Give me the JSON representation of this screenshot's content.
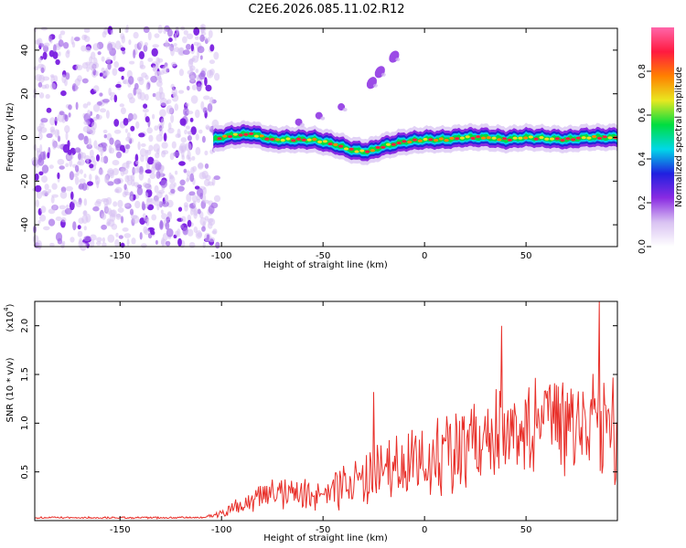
{
  "title": "C2E6.2026.085.11.02.R12",
  "chart_data": [
    {
      "type": "heatmap",
      "name": "spectrogram",
      "xlabel": "Height of straight line (km)",
      "ylabel": "Frequency (Hz)",
      "xlim": [
        -192,
        95
      ],
      "ylim": [
        -50,
        50
      ],
      "xticks": [
        -150,
        -100,
        -50,
        0,
        50
      ],
      "yticks": [
        -40,
        -20,
        0,
        20,
        40
      ],
      "noise_region_x": [
        -192,
        -102
      ],
      "ridge": {
        "x": [
          -104,
          -95,
          -85,
          -75,
          -65,
          -55,
          -45,
          -35,
          -28,
          -20,
          -10,
          0,
          10,
          20,
          30,
          40,
          50,
          60,
          70,
          80,
          95
        ],
        "freq": [
          -1,
          1,
          1.5,
          -1,
          -1,
          -1,
          -3,
          -6,
          -6.5,
          -4,
          -2,
          -1,
          -1,
          0,
          0,
          -1,
          0,
          -0.5,
          -1,
          0,
          0
        ]
      },
      "harmonic_blobs": [
        {
          "x": -15,
          "freq": 37
        },
        {
          "x": -22,
          "freq": 30
        },
        {
          "x": -26,
          "freq": 25
        },
        {
          "x": -41,
          "freq": 14
        },
        {
          "x": -52,
          "freq": 10
        },
        {
          "x": -62,
          "freq": 7
        }
      ]
    },
    {
      "type": "colorbar",
      "name": "amplitude-colorbar",
      "label": "Normalized spectral amplitude",
      "range": [
        0,
        1
      ],
      "ticks": [
        "0.0",
        "0.2",
        "0.4",
        "0.6",
        "0.8"
      ],
      "colors": [
        "#ffffff",
        "#d9c2f2",
        "#8a2be2",
        "#2020e0",
        "#00d8e8",
        "#00dd40",
        "#e8e820",
        "#ff8000",
        "#ff1a40",
        "#ff66aa"
      ]
    },
    {
      "type": "line",
      "name": "snr",
      "xlabel": "Height of straight line (km)",
      "ylabel": "SNR (10 * v/v)",
      "exponent_label": "(x10",
      "exponent_value": "4",
      "exponent_close": ")",
      "xlim": [
        -192,
        95
      ],
      "ylim": [
        0,
        22500
      ],
      "xticks": [
        -150,
        -100,
        -50,
        0,
        50
      ],
      "yticks": [
        "0.5",
        "1.0",
        "1.5",
        "2.0"
      ],
      "ytick_values": [
        5000,
        10000,
        15000,
        20000
      ],
      "envelope": {
        "x": [
          -192,
          -110,
          -100,
          -90,
          -80,
          -70,
          -60,
          -50,
          -40,
          -30,
          -20,
          -10,
          0,
          10,
          20,
          30,
          40,
          50,
          60,
          70,
          80,
          95
        ],
        "mean": [
          300,
          300,
          700,
          1500,
          2400,
          2800,
          2600,
          3000,
          3800,
          4200,
          4800,
          5500,
          6300,
          7000,
          7800,
          8500,
          9000,
          9300,
          9500,
          9800,
          10000,
          9800
        ],
        "amplitude": [
          100,
          100,
          400,
          1000,
          1600,
          1800,
          1700,
          2000,
          2500,
          2800,
          3200,
          3600,
          4000,
          4300,
          4600,
          4900,
          5200,
          5400,
          5600,
          5800,
          6000,
          6000
        ]
      },
      "peaks": [
        {
          "x": -25,
          "y": 13200
        },
        {
          "x": 38,
          "y": 20000
        },
        {
          "x": 86,
          "y": 22500
        }
      ],
      "color": "#e8302a"
    }
  ]
}
